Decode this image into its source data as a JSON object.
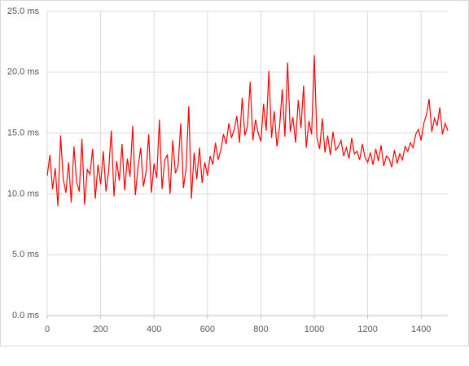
{
  "chart_data": {
    "type": "line",
    "x": [
      0,
      10,
      20,
      30,
      40,
      50,
      60,
      70,
      80,
      90,
      100,
      110,
      120,
      130,
      140,
      150,
      160,
      170,
      180,
      190,
      200,
      210,
      220,
      230,
      240,
      250,
      260,
      270,
      280,
      290,
      300,
      310,
      320,
      330,
      340,
      350,
      360,
      370,
      380,
      390,
      400,
      410,
      420,
      430,
      440,
      450,
      460,
      470,
      480,
      490,
      500,
      510,
      520,
      530,
      540,
      550,
      560,
      570,
      580,
      590,
      600,
      610,
      620,
      630,
      640,
      650,
      660,
      670,
      680,
      690,
      700,
      710,
      720,
      730,
      740,
      750,
      760,
      770,
      780,
      790,
      800,
      810,
      820,
      830,
      840,
      850,
      860,
      870,
      880,
      890,
      900,
      910,
      920,
      930,
      940,
      950,
      960,
      970,
      980,
      990,
      1000,
      1010,
      1020,
      1030,
      1040,
      1050,
      1060,
      1070,
      1080,
      1090,
      1100,
      1110,
      1120,
      1130,
      1140,
      1150,
      1160,
      1170,
      1180,
      1190,
      1200,
      1210,
      1220,
      1230,
      1240,
      1250,
      1260,
      1270,
      1280,
      1290,
      1300,
      1310,
      1320,
      1330,
      1340,
      1350,
      1360,
      1370,
      1380,
      1390,
      1400,
      1410,
      1420,
      1430,
      1440,
      1450,
      1460,
      1470,
      1480,
      1490,
      1500
    ],
    "series": [
      {
        "color": "#ff0000",
        "values": [
          11.5,
          13.2,
          10.4,
          12.1,
          9.0,
          14.8,
          11.2,
          10.1,
          12.6,
          9.3,
          13.9,
          11.0,
          10.2,
          14.5,
          9.1,
          12.0,
          11.6,
          13.7,
          9.6,
          12.4,
          10.8,
          13.5,
          10.2,
          11.9,
          15.2,
          9.8,
          12.7,
          11.1,
          14.1,
          10.3,
          12.9,
          11.4,
          15.6,
          9.9,
          12.2,
          13.8,
          10.6,
          11.8,
          14.9,
          10.1,
          12.5,
          11.3,
          16.1,
          10.4,
          12.8,
          13.2,
          10.0,
          14.4,
          11.7,
          12.3,
          15.8,
          10.5,
          12.1,
          17.2,
          9.6,
          13.4,
          11.2,
          13.8,
          10.9,
          12.6,
          11.5,
          13.1,
          12.4,
          14.2,
          12.8,
          13.6,
          14.9,
          14.1,
          15.8,
          14.6,
          15.3,
          16.4,
          14.2,
          17.9,
          14.8,
          15.6,
          19.2,
          14.4,
          16.1,
          15.0,
          14.3,
          17.4,
          15.2,
          20.1,
          14.6,
          16.8,
          13.9,
          15.5,
          18.6,
          14.7,
          20.8,
          15.1,
          16.3,
          14.2,
          17.7,
          15.4,
          18.9,
          13.8,
          16.0,
          14.9,
          21.4,
          14.6,
          13.7,
          16.2,
          13.4,
          14.8,
          13.2,
          15.1,
          13.6,
          13.9,
          14.4,
          13.1,
          13.8,
          12.9,
          14.6,
          13.3,
          13.5,
          12.8,
          14.1,
          13.0,
          12.6,
          13.4,
          12.4,
          13.7,
          12.7,
          14.0,
          12.3,
          13.1,
          12.9,
          12.2,
          13.6,
          12.5,
          13.3,
          12.8,
          13.9,
          13.5,
          14.2,
          13.8,
          14.9,
          15.3,
          14.4,
          15.8,
          16.5,
          17.8,
          15.1,
          16.2,
          15.6,
          17.1,
          14.9,
          15.8,
          15.2
        ]
      }
    ],
    "xlim": [
      0,
      1500
    ],
    "xticks": [
      0,
      200,
      400,
      600,
      800,
      1000,
      1200,
      1400
    ],
    "ylim": [
      0,
      25
    ],
    "yticks": [
      {
        "value": 0,
        "label": "0.0 ms"
      },
      {
        "value": 5,
        "label": "5.0 ms"
      },
      {
        "value": 10,
        "label": "10.0 ms"
      },
      {
        "value": 15,
        "label": "15.0 ms"
      },
      {
        "value": 20,
        "label": "20.0 ms"
      },
      {
        "value": 25,
        "label": "25.0 ms"
      }
    ],
    "grid": true
  }
}
